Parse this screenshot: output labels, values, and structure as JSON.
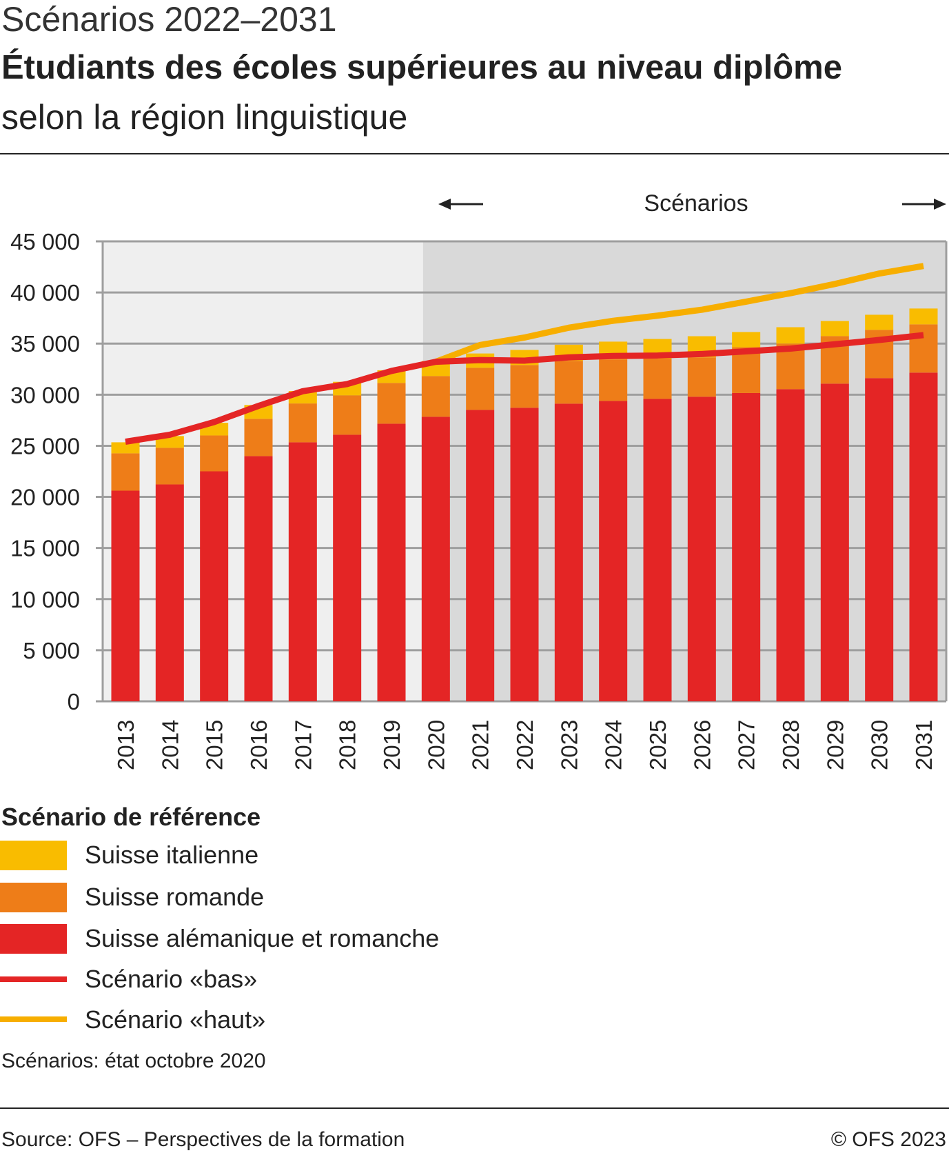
{
  "header": {
    "kicker": "Scénarios 2022–2031",
    "title": "Étudiants des écoles supérieures au niveau diplôme",
    "subtitle": "selon la région linguistique"
  },
  "chart_data": {
    "type": "bar",
    "stacked": true,
    "scenario_label": "Scénarios",
    "scenario_start": "2020",
    "categories": [
      "2013",
      "2014",
      "2015",
      "2016",
      "2017",
      "2018",
      "2019",
      "2020",
      "2021",
      "2022",
      "2023",
      "2024",
      "2025",
      "2026",
      "2027",
      "2028",
      "2029",
      "2030",
      "2031"
    ],
    "ylim": [
      0,
      45000
    ],
    "yticks": [
      0,
      5000,
      10000,
      15000,
      20000,
      25000,
      30000,
      35000,
      40000,
      45000
    ],
    "ytick_labels": [
      "0",
      "5 000",
      "10 000",
      "15 000",
      "20 000",
      "25 000",
      "30 000",
      "35 000",
      "40 000",
      "45 000"
    ],
    "grid": true,
    "legend_title": "Scénario de référence",
    "series": [
      {
        "name": "Suisse alémanique et romanche",
        "type": "bar",
        "color": "#e42525",
        "values": [
          20610,
          21220,
          22500,
          23990,
          25340,
          26080,
          27160,
          27840,
          28510,
          28720,
          29120,
          29390,
          29590,
          29800,
          30160,
          30540,
          31080,
          31620,
          32160
        ]
      },
      {
        "name": "Suisse romande",
        "type": "bar",
        "color": "#ee7d18",
        "values": [
          3650,
          3580,
          3510,
          3650,
          3800,
          3850,
          3990,
          3980,
          4120,
          4180,
          4190,
          4060,
          3910,
          3850,
          4480,
          4460,
          4650,
          4720,
          4720
        ]
      },
      {
        "name": "Suisse italienne",
        "type": "bar",
        "color": "#f9bc00",
        "values": [
          1080,
          1150,
          1240,
          1350,
          1220,
          1330,
          1240,
          1470,
          1400,
          1480,
          1580,
          1740,
          1950,
          2070,
          1490,
          1600,
          1480,
          1480,
          1550
        ]
      },
      {
        "name": "Scénario «bas»",
        "type": "line",
        "color": "#e42525",
        "values": [
          25400,
          26080,
          27320,
          28900,
          30340,
          31040,
          32320,
          33220,
          33390,
          33330,
          33650,
          33780,
          33830,
          33980,
          34240,
          34510,
          34930,
          35350,
          35830
        ]
      },
      {
        "name": "Scénario «haut»",
        "type": "line",
        "color": "#f7ae00",
        "values": [
          null,
          null,
          null,
          null,
          null,
          null,
          null,
          33220,
          34860,
          35590,
          36550,
          37230,
          37730,
          38310,
          39100,
          39930,
          40830,
          41850,
          42590
        ]
      }
    ]
  },
  "footer": {
    "note": "Scénarios: état octobre 2020",
    "source": "Source: OFS – Perspectives de la formation",
    "copyright": "© OFS 2023"
  }
}
